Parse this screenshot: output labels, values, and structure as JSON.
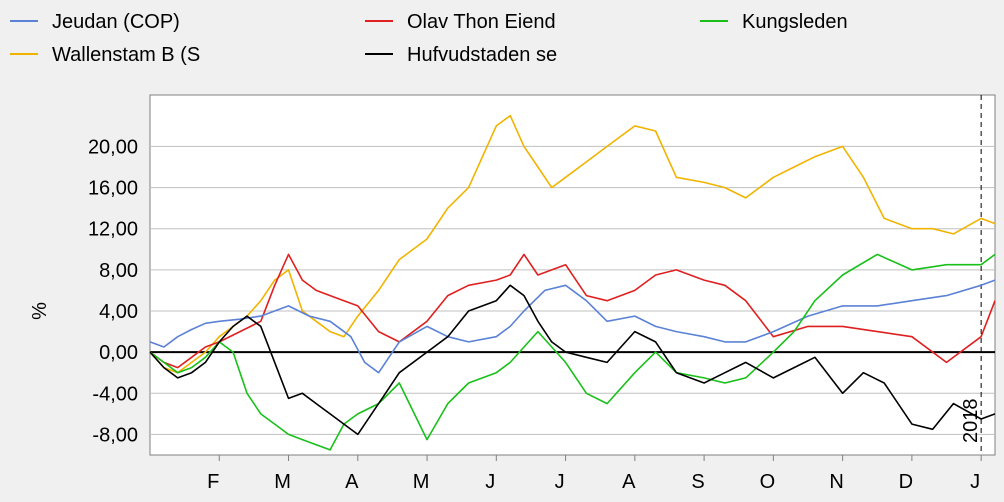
{
  "chart_data": {
    "type": "line",
    "ylabel": "%",
    "ylim": [
      -10,
      25
    ],
    "xlim": [
      0,
      12.2
    ],
    "y_ticks": [
      -8,
      -4,
      0,
      4,
      8,
      12,
      16,
      20
    ],
    "y_tick_labels": [
      "-8,00",
      "-4,00",
      "0,00",
      "4,00",
      "8,00",
      "12,00",
      "16,00",
      "20,00"
    ],
    "x_tick_labels": [
      "F",
      "M",
      "A",
      "M",
      "J",
      "J",
      "A",
      "S",
      "O",
      "N",
      "D",
      "J"
    ],
    "x_tick_positions": [
      1,
      2,
      3,
      4,
      5,
      6,
      7,
      8,
      9,
      10,
      11,
      12
    ],
    "year_marker": {
      "label": "2018",
      "x": 12
    },
    "grid": true,
    "legend": "top",
    "series": [
      {
        "name": "Jeudan (COP)",
        "color": "#5b82d6",
        "x": [
          0,
          0.2,
          0.4,
          0.6,
          0.8,
          1,
          1.3,
          1.6,
          2,
          2.3,
          2.6,
          2.9,
          3.1,
          3.3,
          3.6,
          4,
          4.3,
          4.6,
          5,
          5.2,
          5.4,
          5.7,
          6,
          6.3,
          6.6,
          7,
          7.3,
          7.6,
          8,
          8.3,
          8.6,
          9,
          9.5,
          10,
          10.5,
          11,
          11.5,
          12,
          12.2
        ],
        "y": [
          1,
          0.5,
          1.5,
          2.2,
          2.8,
          3,
          3.2,
          3.5,
          4.5,
          3.5,
          3,
          1.5,
          -1,
          -2,
          1,
          2.5,
          1.5,
          1,
          1.5,
          2.5,
          4,
          6,
          6.5,
          5,
          3,
          3.5,
          2.5,
          2,
          1.5,
          1,
          1,
          2,
          3.5,
          4.5,
          4.5,
          5,
          5.5,
          6.5,
          7
        ]
      },
      {
        "name": "Olav Thon Eiend",
        "color": "#e02020",
        "x": [
          0,
          0.2,
          0.4,
          0.6,
          0.8,
          1,
          1.3,
          1.6,
          1.8,
          2,
          2.2,
          2.4,
          2.6,
          3,
          3.3,
          3.6,
          4,
          4.3,
          4.6,
          5,
          5.2,
          5.4,
          5.6,
          6,
          6.3,
          6.6,
          7,
          7.3,
          7.6,
          8,
          8.3,
          8.6,
          9,
          9.5,
          10,
          10.5,
          11,
          11.5,
          12,
          12.2
        ],
        "y": [
          0,
          -1,
          -1.5,
          -0.5,
          0.5,
          1,
          2,
          3,
          6.5,
          9.5,
          7,
          6,
          5.5,
          4.5,
          2,
          1,
          3,
          5.5,
          6.5,
          7,
          7.5,
          9.5,
          7.5,
          8.5,
          5.5,
          5,
          6,
          7.5,
          8,
          7,
          6.5,
          5,
          1.5,
          2.5,
          2.5,
          2,
          1.5,
          -1,
          1.5,
          5
        ]
      },
      {
        "name": "Kungsleden",
        "color": "#19c019",
        "x": [
          0,
          0.2,
          0.4,
          0.6,
          0.8,
          1,
          1.2,
          1.4,
          1.6,
          1.8,
          2,
          2.2,
          2.4,
          2.6,
          2.8,
          3,
          3.3,
          3.6,
          4,
          4.3,
          4.6,
          5,
          5.2,
          5.4,
          5.6,
          6,
          6.3,
          6.6,
          7,
          7.3,
          7.6,
          8,
          8.3,
          8.6,
          9,
          9.3,
          9.6,
          10,
          10.5,
          11,
          11.5,
          12,
          12.2
        ],
        "y": [
          0,
          -1,
          -2,
          -1.5,
          -0.5,
          1,
          0,
          -4,
          -6,
          -7,
          -8,
          -8.5,
          -9,
          -9.5,
          -7,
          -6,
          -5,
          -3,
          -8.5,
          -5,
          -3,
          -2,
          -1,
          0.5,
          2,
          -1,
          -4,
          -5,
          -2,
          0,
          -2,
          -2.5,
          -3,
          -2.5,
          0,
          2,
          5,
          7.5,
          9.5,
          8,
          8.5,
          8.5,
          9.5
        ]
      },
      {
        "name": "Wallenstam B (S",
        "color": "#f0b400",
        "x": [
          0,
          0.2,
          0.4,
          0.6,
          0.8,
          1,
          1.2,
          1.4,
          1.6,
          1.8,
          2,
          2.2,
          2.4,
          2.6,
          2.8,
          3,
          3.3,
          3.6,
          4,
          4.3,
          4.6,
          5,
          5.2,
          5.4,
          5.6,
          5.8,
          6,
          6.3,
          6.6,
          7,
          7.3,
          7.6,
          8,
          8.3,
          8.6,
          9,
          9.3,
          9.6,
          10,
          10.3,
          10.6,
          11,
          11.3,
          11.6,
          12,
          12.2
        ],
        "y": [
          0,
          -1.5,
          -2,
          -1,
          0,
          1.5,
          2.5,
          3.5,
          5,
          7,
          8,
          4,
          3,
          2,
          1.5,
          3.5,
          6,
          9,
          11,
          14,
          16,
          22,
          23,
          20,
          18,
          16,
          17,
          18.5,
          20,
          22,
          21.5,
          17,
          16.5,
          16,
          15,
          17,
          18,
          19,
          20,
          17,
          13,
          12,
          12,
          11.5,
          13,
          12.5
        ]
      },
      {
        "name": "Hufvudstaden se",
        "color": "#000000",
        "x": [
          0,
          0.2,
          0.4,
          0.6,
          0.8,
          1,
          1.2,
          1.4,
          1.6,
          1.8,
          2,
          2.2,
          2.4,
          2.6,
          2.8,
          3,
          3.3,
          3.6,
          4,
          4.3,
          4.6,
          5,
          5.2,
          5.4,
          5.6,
          5.8,
          6,
          6.3,
          6.6,
          7,
          7.3,
          7.6,
          8,
          8.3,
          8.6,
          9,
          9.3,
          9.6,
          10,
          10.3,
          10.6,
          11,
          11.3,
          11.6,
          12,
          12.2
        ],
        "y": [
          0,
          -1.5,
          -2.5,
          -2,
          -1,
          1,
          2.5,
          3.5,
          2.5,
          -1,
          -4.5,
          -4,
          -5,
          -6,
          -7,
          -8,
          -5,
          -2,
          0,
          1.5,
          4,
          5,
          6.5,
          5.5,
          3,
          1,
          0,
          -0.5,
          -1,
          2,
          1,
          -2,
          -3,
          -2,
          -1,
          -2.5,
          -1.5,
          -0.5,
          -4,
          -2,
          -3,
          -7,
          -7.5,
          -5,
          -6.5,
          -6
        ]
      }
    ]
  }
}
